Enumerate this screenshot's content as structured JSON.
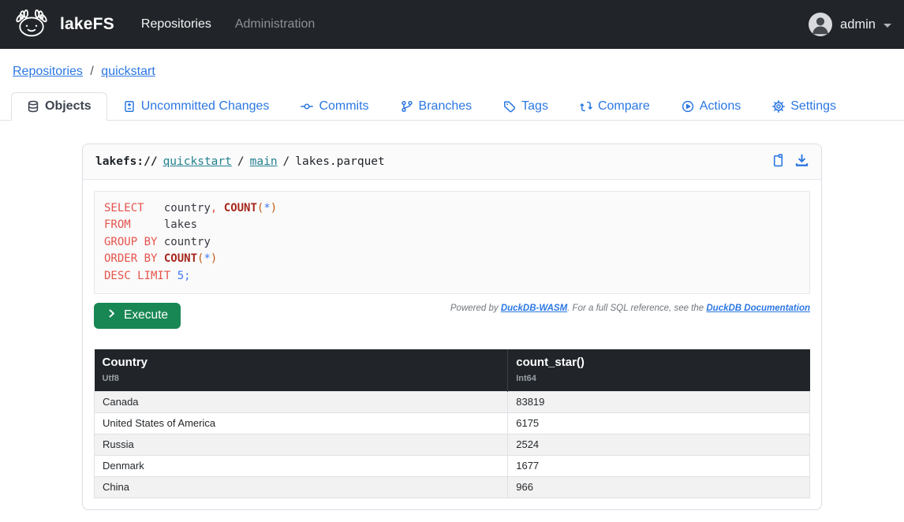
{
  "navbar": {
    "brand": "lakeFS",
    "links": [
      {
        "label": "Repositories",
        "active": true
      },
      {
        "label": "Administration",
        "active": false
      }
    ],
    "user": {
      "name": "admin"
    }
  },
  "breadcrumb": {
    "items": [
      "Repositories",
      "quickstart"
    ],
    "separator": "/"
  },
  "tabs": [
    {
      "label": "Objects",
      "icon": "database-icon",
      "active": true
    },
    {
      "label": "Uncommitted Changes",
      "icon": "file-diff-icon",
      "active": false
    },
    {
      "label": "Commits",
      "icon": "commit-icon",
      "active": false
    },
    {
      "label": "Branches",
      "icon": "branch-icon",
      "active": false
    },
    {
      "label": "Tags",
      "icon": "tag-icon",
      "active": false
    },
    {
      "label": "Compare",
      "icon": "compare-icon",
      "active": false
    },
    {
      "label": "Actions",
      "icon": "play-circle-icon",
      "active": false
    },
    {
      "label": "Settings",
      "icon": "gear-icon",
      "active": false
    }
  ],
  "object_viewer": {
    "path": {
      "scheme": "lakefs://",
      "repo": "quickstart",
      "branch": "main",
      "file": "lakes.parquet",
      "separator": "/"
    },
    "header_icons": [
      "clipboard-icon",
      "download-icon"
    ],
    "sql_lines": [
      [
        [
          "k",
          "SELECT"
        ],
        [
          "t",
          "   "
        ],
        [
          "t",
          "country"
        ],
        [
          "k",
          ","
        ],
        [
          "t",
          " "
        ],
        [
          "f",
          "COUNT"
        ],
        [
          "p",
          "("
        ],
        [
          "o",
          "*"
        ],
        [
          "p",
          ")"
        ]
      ],
      [
        [
          "k",
          "FROM"
        ],
        [
          "t",
          "     "
        ],
        [
          "t",
          "lakes"
        ]
      ],
      [
        [
          "k",
          "GROUP BY"
        ],
        [
          "t",
          " "
        ],
        [
          "t",
          "country"
        ]
      ],
      [
        [
          "k",
          "ORDER BY"
        ],
        [
          "t",
          " "
        ],
        [
          "f",
          "COUNT"
        ],
        [
          "p",
          "("
        ],
        [
          "o",
          "*"
        ],
        [
          "p",
          ")"
        ]
      ],
      [
        [
          "k",
          "DESC LIMIT"
        ],
        [
          "t",
          " "
        ],
        [
          "n",
          "5;"
        ]
      ]
    ],
    "powered_by": {
      "prefix": "Powered by ",
      "link1": "DuckDB-WASM",
      "middle": ". For a full SQL reference, see the ",
      "link2": "DuckDB Documentation"
    },
    "execute_label": "Execute",
    "table": {
      "columns": [
        {
          "name": "Country",
          "type": "Utf8"
        },
        {
          "name": "count_star()",
          "type": "Int64"
        }
      ],
      "rows": [
        [
          "Canada",
          "83819"
        ],
        [
          "United States of America",
          "6175"
        ],
        [
          "Russia",
          "2524"
        ],
        [
          "Denmark",
          "1677"
        ],
        [
          "China",
          "966"
        ]
      ]
    }
  },
  "colors": {
    "navbar_bg": "#212529",
    "link_blue": "#2b77e2",
    "path_link_teal": "#23818e",
    "execute_green": "#198754",
    "table_header_bg": "#212529",
    "row_stripe": "#f2f2f2",
    "sql_keyword": "#e5534b",
    "sql_function": "#a6271c",
    "sql_paren": "#bf5b16",
    "sql_literal": "#4078f2"
  }
}
